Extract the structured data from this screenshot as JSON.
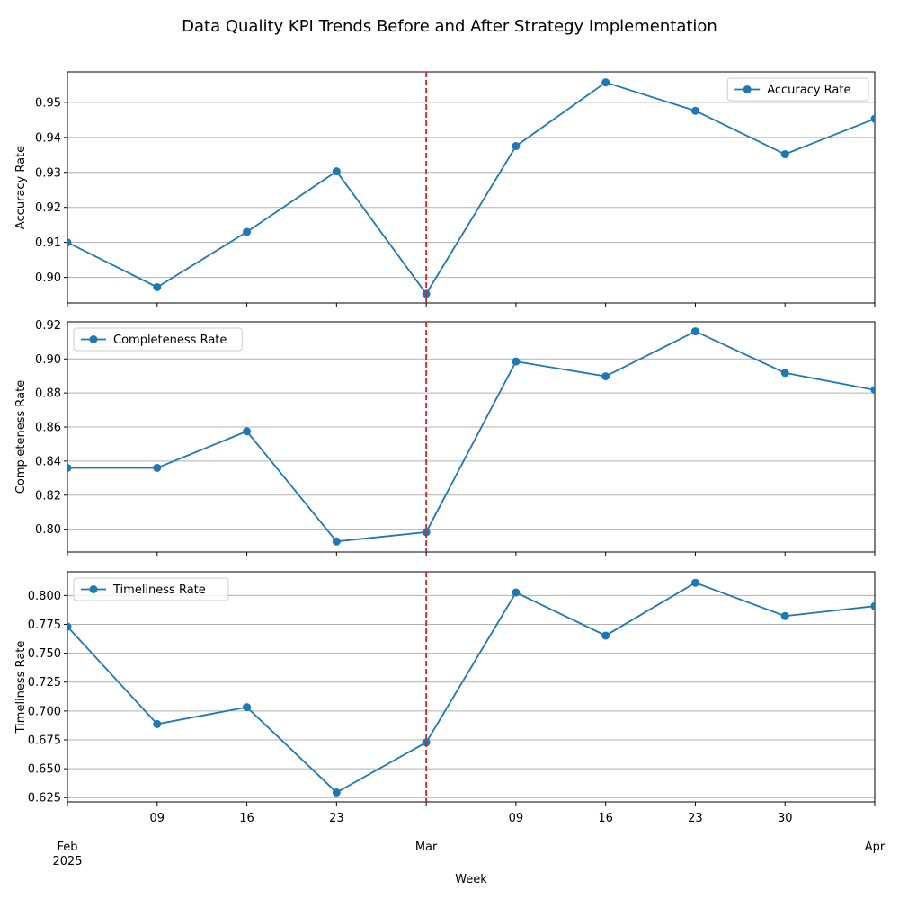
{
  "figure": {
    "title": "Data Quality KPI Trends Before and After Strategy Implementation"
  },
  "colors": {
    "series": "#1f77b4",
    "marker_line": "#d62728",
    "grid": "#b0b0b0",
    "axes": "#000000"
  },
  "chart_data": [
    {
      "type": "line",
      "title": "",
      "xlabel": "",
      "ylabel": "Accuracy Rate",
      "x": [
        "2025-02-02",
        "2025-02-09",
        "2025-02-16",
        "2025-02-23",
        "2025-03-02",
        "2025-03-09",
        "2025-03-16",
        "2025-03-23",
        "2025-03-30",
        "2025-04-06"
      ],
      "series": [
        {
          "name": "Accuracy Rate",
          "values": [
            0.91,
            0.8972,
            0.913,
            0.9303,
            0.8953,
            0.9375,
            0.9557,
            0.9476,
            0.9352,
            0.9453
          ]
        }
      ],
      "ylim": [
        0.8927,
        0.9587
      ],
      "yticks": [
        0.9,
        0.91,
        0.92,
        0.93,
        0.94,
        0.95
      ],
      "yticklabels": [
        "0.90",
        "0.91",
        "0.92",
        "0.93",
        "0.94",
        "0.95"
      ],
      "grid": "y",
      "legend": "upper right",
      "marker_date": "2025-03-02"
    },
    {
      "type": "line",
      "title": "",
      "xlabel": "",
      "ylabel": "Completeness Rate",
      "x": [
        "2025-02-02",
        "2025-02-09",
        "2025-02-16",
        "2025-02-23",
        "2025-03-02",
        "2025-03-09",
        "2025-03-16",
        "2025-03-23",
        "2025-03-30",
        "2025-04-06"
      ],
      "series": [
        {
          "name": "Completeness Rate",
          "values": [
            0.836,
            0.836,
            0.8575,
            0.7928,
            0.7983,
            0.8985,
            0.8898,
            0.9162,
            0.8918,
            0.8818
          ]
        }
      ],
      "ylim": [
        0.7866,
        0.9218
      ],
      "yticks": [
        0.8,
        0.82,
        0.84,
        0.86,
        0.88,
        0.9,
        0.92
      ],
      "yticklabels": [
        "0.80",
        "0.82",
        "0.84",
        "0.86",
        "0.88",
        "0.90",
        "0.92"
      ],
      "grid": "y",
      "legend": "upper left",
      "marker_date": "2025-03-02"
    },
    {
      "type": "line",
      "title": "",
      "xlabel": "Week",
      "ylabel": "Timeliness Rate",
      "x": [
        "2025-02-02",
        "2025-02-09",
        "2025-02-16",
        "2025-02-23",
        "2025-03-02",
        "2025-03-09",
        "2025-03-16",
        "2025-03-23",
        "2025-03-30",
        "2025-04-06"
      ],
      "series": [
        {
          "name": "Timeliness Rate",
          "values": [
            0.773,
            0.6887,
            0.7033,
            0.6295,
            0.6728,
            0.8026,
            0.7653,
            0.811,
            0.7822,
            0.7908
          ]
        }
      ],
      "ylim": [
        0.6213,
        0.8205
      ],
      "yticks": [
        0.625,
        0.65,
        0.675,
        0.7,
        0.725,
        0.75,
        0.775,
        0.8
      ],
      "yticklabels": [
        "0.625",
        "0.650",
        "0.675",
        "0.700",
        "0.725",
        "0.750",
        "0.775",
        "0.800"
      ],
      "grid": "y",
      "legend": "upper left",
      "marker_date": "2025-03-02"
    }
  ],
  "x_axis": {
    "start": "2025-02-02",
    "end": "2025-04-06",
    "ticks": [
      {
        "date": "2025-02-02",
        "label": "Feb\n2025"
      },
      {
        "date": "2025-02-09",
        "label": "09"
      },
      {
        "date": "2025-02-16",
        "label": "16"
      },
      {
        "date": "2025-02-23",
        "label": "23"
      },
      {
        "date": "2025-03-02",
        "label": "Mar"
      },
      {
        "date": "2025-03-09",
        "label": "09"
      },
      {
        "date": "2025-03-16",
        "label": "16"
      },
      {
        "date": "2025-03-23",
        "label": "23"
      },
      {
        "date": "2025-03-30",
        "label": "30"
      },
      {
        "date": "2025-04-06",
        "label": "Apr"
      }
    ]
  }
}
